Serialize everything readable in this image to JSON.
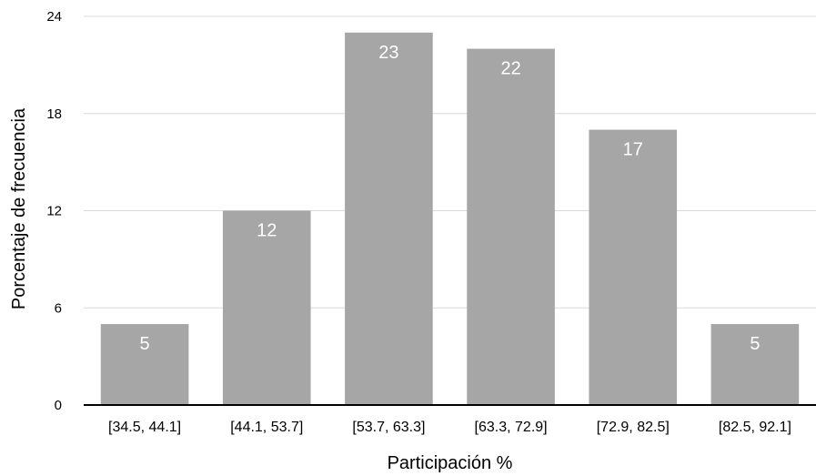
{
  "chart_data": {
    "type": "bar",
    "title": "",
    "xlabel": "Participación %",
    "ylabel": "Porcentaje de frecuencia",
    "categories": [
      "[34.5, 44.1]",
      "[44.1, 53.7]",
      "[53.7, 63.3]",
      "[63.3, 72.9]",
      "[72.9, 82.5]",
      "[82.5, 92.1]"
    ],
    "values": [
      5,
      12,
      23,
      22,
      17,
      5
    ],
    "ylim": [
      0,
      24
    ],
    "yticks": [
      0,
      6,
      12,
      18,
      24
    ],
    "grid": true,
    "legend": "none",
    "data_labels": true,
    "bar_color": "#a6a6a6",
    "label_color": "#ffffff"
  }
}
